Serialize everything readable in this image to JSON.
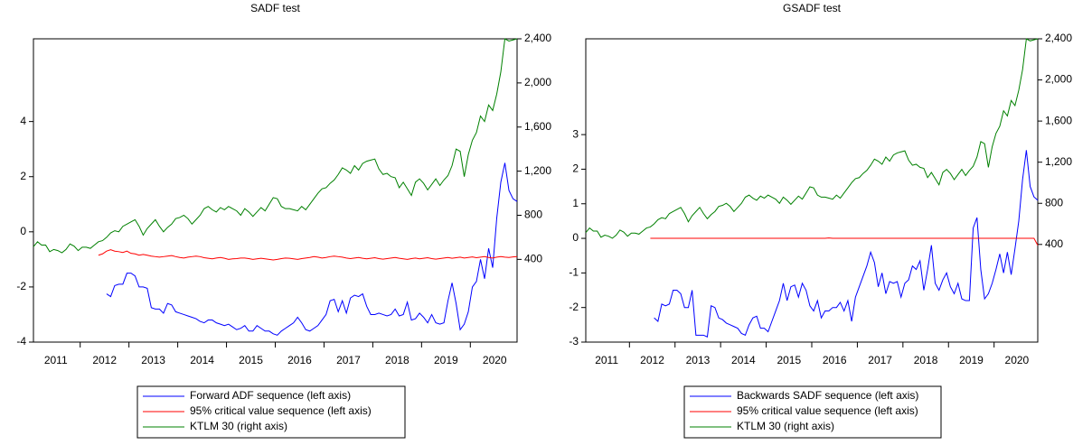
{
  "chart_data": [
    {
      "type": "line",
      "title": "SADF test",
      "categories": [
        null,
        null,
        null,
        null,
        null,
        null,
        "2011",
        null,
        null,
        null,
        null,
        null,
        null,
        null,
        null,
        null,
        null,
        null,
        "2012",
        null,
        null,
        null,
        null,
        null,
        null,
        null,
        null,
        null,
        null,
        null,
        "2013",
        null,
        null,
        null,
        null,
        null,
        null,
        null,
        null,
        null,
        null,
        null,
        "2014",
        null,
        null,
        null,
        null,
        null,
        null,
        null,
        null,
        null,
        null,
        null,
        "2015",
        null,
        null,
        null,
        null,
        null,
        null,
        null,
        null,
        null,
        null,
        null,
        "2016",
        null,
        null,
        null,
        null,
        null,
        null,
        null,
        null,
        null,
        null,
        null,
        "2017",
        null,
        null,
        null,
        null,
        null,
        null,
        null,
        null,
        null,
        null,
        null,
        "2018",
        null,
        null,
        null,
        null,
        null,
        null,
        null,
        null,
        null,
        null,
        null,
        "2019",
        null,
        null,
        null,
        null,
        null,
        null,
        null,
        null,
        null,
        null,
        null,
        "2020",
        null,
        null,
        null,
        null,
        null
      ],
      "ylim": [
        -4,
        7
      ],
      "yticks": [
        -4,
        -2,
        0,
        2,
        4
      ],
      "y2lim": [
        -350,
        2400
      ],
      "y2ticks": [
        400,
        800,
        {
          "value": 1200,
          "label": "1,200"
        },
        {
          "value": 1600,
          "label": "1,600"
        },
        {
          "value": 2000,
          "label": "2,000"
        },
        {
          "value": 2400,
          "label": "2,400"
        }
      ],
      "series": [
        {
          "name": "Forward ADF sequence (left axis)",
          "color": "#0000ff",
          "values": [
            null,
            null,
            null,
            null,
            null,
            null,
            null,
            null,
            null,
            null,
            null,
            null,
            null,
            null,
            null,
            null,
            null,
            null,
            -2.25,
            -2.35,
            -1.95,
            -1.9,
            -1.9,
            -1.5,
            -1.5,
            -1.6,
            -2.0,
            -2.0,
            -2.05,
            -2.75,
            -2.8,
            -2.8,
            -2.95,
            -2.6,
            -2.65,
            -2.9,
            -2.95,
            -3.0,
            -3.05,
            -3.1,
            -3.15,
            -3.25,
            -3.3,
            -3.2,
            -3.2,
            -3.3,
            -3.35,
            -3.4,
            -3.35,
            -3.45,
            -3.55,
            -3.5,
            -3.4,
            -3.6,
            -3.6,
            -3.4,
            -3.5,
            -3.6,
            -3.6,
            -3.7,
            -3.75,
            -3.6,
            -3.5,
            -3.4,
            -3.3,
            -3.1,
            -3.3,
            -3.55,
            -3.6,
            -3.5,
            -3.4,
            -3.2,
            -3.0,
            -2.5,
            -2.45,
            -2.9,
            -2.5,
            -2.95,
            -2.4,
            -2.3,
            -2.35,
            -2.25,
            -2.7,
            -3.0,
            -3.0,
            -2.95,
            -3.0,
            -3.05,
            -3.0,
            -2.8,
            -3.05,
            -3.0,
            -2.55,
            -3.2,
            -3.15,
            -2.95,
            -3.1,
            -3.3,
            -3.0,
            -3.3,
            -3.35,
            -3.3,
            -2.5,
            -1.85,
            -2.6,
            -3.55,
            -3.35,
            -2.9,
            -2.0,
            -1.8,
            -1.0,
            -1.7,
            -0.6,
            -1.3,
            0.5,
            1.8,
            2.5,
            1.5,
            1.2,
            1.1
          ]
        },
        {
          "name": "95% critical value sequence (left axis)",
          "color": "#ff0000",
          "values": [
            null,
            null,
            null,
            null,
            null,
            null,
            null,
            null,
            null,
            null,
            null,
            null,
            null,
            null,
            null,
            null,
            -0.85,
            -0.8,
            -0.7,
            -0.65,
            -0.7,
            -0.72,
            -0.75,
            -0.7,
            -0.78,
            -0.8,
            -0.85,
            -0.82,
            -0.85,
            -0.88,
            -0.9,
            -0.92,
            -0.9,
            -0.88,
            -0.86,
            -0.9,
            -0.93,
            -0.95,
            -0.92,
            -0.9,
            -0.88,
            -0.9,
            -0.94,
            -0.96,
            -0.98,
            -0.95,
            -0.93,
            -0.96,
            -1.0,
            -0.98,
            -0.97,
            -0.95,
            -0.95,
            -0.97,
            -1.0,
            -0.98,
            -0.96,
            -0.98,
            -1.0,
            -1.02,
            -1.0,
            -0.97,
            -0.95,
            -0.96,
            -0.98,
            -1.0,
            -0.97,
            -0.95,
            -0.93,
            -0.9,
            -0.92,
            -0.95,
            -0.93,
            -0.9,
            -0.88,
            -0.9,
            -0.92,
            -0.95,
            -0.97,
            -0.95,
            -0.93,
            -0.96,
            -0.98,
            -0.96,
            -0.94,
            -0.97,
            -0.99,
            -0.97,
            -0.95,
            -0.93,
            -0.96,
            -0.98,
            -1.0,
            -0.97,
            -0.95,
            -0.98,
            -0.96,
            -0.94,
            -0.97,
            -0.99,
            -0.97,
            -0.95,
            -0.93,
            -0.96,
            -0.94,
            -0.92,
            -0.95,
            -0.93,
            -0.91,
            -0.94,
            -0.92,
            -0.9,
            -0.93,
            -0.95,
            -0.92,
            -0.9,
            -0.92,
            -0.93,
            -0.91,
            -0.9
          ]
        },
        {
          "name": "KTLM 30 (right axis)",
          "color": "#008000",
          "axis": "y2",
          "values": [
            515,
            560,
            530,
            530,
            470,
            490,
            480,
            460,
            490,
            540,
            520,
            480,
            510,
            510,
            500,
            530,
            560,
            570,
            600,
            640,
            660,
            650,
            700,
            720,
            740,
            760,
            700,
            620,
            680,
            720,
            760,
            700,
            650,
            690,
            720,
            770,
            780,
            800,
            770,
            720,
            760,
            800,
            860,
            880,
            850,
            830,
            870,
            850,
            880,
            860,
            840,
            800,
            860,
            830,
            790,
            830,
            870,
            840,
            900,
            960,
            950,
            880,
            860,
            860,
            850,
            840,
            880,
            850,
            900,
            950,
            1000,
            1040,
            1050,
            1090,
            1120,
            1170,
            1230,
            1210,
            1180,
            1250,
            1210,
            1270,
            1290,
            1300,
            1310,
            1220,
            1170,
            1180,
            1150,
            1140,
            1050,
            1100,
            1040,
            980,
            1100,
            1130,
            1090,
            1030,
            1080,
            1130,
            1070,
            1120,
            1160,
            1250,
            1400,
            1380,
            1150,
            1350,
            1480,
            1550,
            1700,
            1650,
            1800,
            1750,
            1900,
            2100,
            2400,
            2380,
            2390,
            2400
          ]
        }
      ]
    },
    {
      "type": "line",
      "title": "GSADF test",
      "categories": [
        null,
        null,
        null,
        null,
        null,
        null,
        "2011",
        null,
        null,
        null,
        null,
        null,
        null,
        null,
        null,
        null,
        null,
        null,
        "2012",
        null,
        null,
        null,
        null,
        null,
        null,
        null,
        null,
        null,
        null,
        null,
        "2013",
        null,
        null,
        null,
        null,
        null,
        null,
        null,
        null,
        null,
        null,
        null,
        "2014",
        null,
        null,
        null,
        null,
        null,
        null,
        null,
        null,
        null,
        null,
        null,
        "2015",
        null,
        null,
        null,
        null,
        null,
        null,
        null,
        null,
        null,
        null,
        null,
        "2016",
        null,
        null,
        null,
        null,
        null,
        null,
        null,
        null,
        null,
        null,
        null,
        "2017",
        null,
        null,
        null,
        null,
        null,
        null,
        null,
        null,
        null,
        null,
        null,
        "2018",
        null,
        null,
        null,
        null,
        null,
        null,
        null,
        null,
        null,
        null,
        null,
        "2019",
        null,
        null,
        null,
        null,
        null,
        null,
        null,
        null,
        null,
        null,
        null,
        "2020",
        null,
        null,
        null,
        null,
        null
      ],
      "ylim": [
        -3,
        5.77
      ],
      "yticks": [
        -3,
        -2,
        -1,
        0,
        1,
        2,
        3
      ],
      "y2lim": [
        -550,
        2400
      ],
      "y2ticks": [
        400,
        800,
        {
          "value": 1200,
          "label": "1,200"
        },
        {
          "value": 1600,
          "label": "1,600"
        },
        {
          "value": 2000,
          "label": "2,000"
        },
        {
          "value": 2400,
          "label": "2,400"
        }
      ],
      "series": [
        {
          "name": "Backwards SADF sequence (left axis)",
          "color": "#0000ff",
          "values": [
            null,
            null,
            null,
            null,
            null,
            null,
            null,
            null,
            null,
            null,
            null,
            null,
            null,
            null,
            null,
            null,
            null,
            null,
            -2.3,
            -2.4,
            -1.9,
            -1.95,
            -1.9,
            -1.5,
            -1.5,
            -1.6,
            -2.0,
            -2.0,
            -1.5,
            -2.8,
            -2.8,
            -2.8,
            -2.85,
            -1.95,
            -2.0,
            -2.3,
            -2.35,
            -2.45,
            -2.5,
            -2.55,
            -2.6,
            -2.75,
            -2.8,
            -2.5,
            -2.3,
            -2.25,
            -2.6,
            -2.6,
            -2.7,
            -2.4,
            -2.1,
            -1.8,
            -1.3,
            -1.8,
            -1.4,
            -1.35,
            -1.7,
            -1.3,
            -1.5,
            -1.95,
            -2.1,
            -1.8,
            -2.3,
            -2.1,
            -2.1,
            -2.0,
            -2.0,
            -1.85,
            -2.1,
            -1.8,
            -2.4,
            -1.7,
            -1.4,
            -1.1,
            -0.8,
            -0.4,
            -0.7,
            -1.4,
            -1.0,
            -1.6,
            -1.25,
            -1.3,
            -1.25,
            -1.7,
            -1.3,
            -1.2,
            -0.8,
            -0.9,
            -0.65,
            -1.5,
            -0.9,
            -0.2,
            -1.3,
            -1.5,
            -1.2,
            -1.0,
            -1.4,
            -1.6,
            -1.3,
            -1.75,
            -1.8,
            -1.8,
            0.3,
            0.6,
            -0.9,
            -1.75,
            -1.6,
            -1.3,
            -0.9,
            -0.45,
            -1.0,
            -0.4,
            -1.05,
            -0.3,
            0.5,
            1.7,
            2.55,
            1.5,
            1.2,
            1.1
          ]
        },
        {
          "name": "95% critical value sequence (left axis)",
          "color": "#ff0000",
          "values": [
            null,
            null,
            null,
            null,
            null,
            null,
            null,
            null,
            null,
            null,
            null,
            null,
            null,
            null,
            null,
            null,
            null,
            0,
            0,
            0,
            0,
            0,
            0,
            0,
            0,
            0,
            0,
            0,
            0,
            0,
            0,
            0,
            0,
            0,
            0,
            0,
            0,
            0,
            0,
            0,
            0,
            0,
            0,
            0,
            0,
            0,
            0,
            0,
            0,
            0,
            0,
            0,
            0,
            0,
            0,
            0,
            0,
            0,
            0,
            0,
            0,
            0,
            0,
            0,
            0.01,
            0,
            0,
            0,
            0,
            0,
            0,
            0,
            0,
            0,
            0,
            0,
            0,
            0,
            0,
            0,
            0,
            0,
            0,
            0,
            0,
            0,
            0,
            0,
            0,
            0,
            0,
            0,
            0,
            0,
            0,
            0,
            0,
            0,
            0,
            0,
            0,
            0,
            0,
            0,
            0,
            0,
            0,
            0,
            0,
            0,
            0,
            0,
            0,
            0,
            0,
            0,
            0,
            0,
            0,
            -0.2
          ]
        },
        {
          "name": "KTLM 30 (right axis)",
          "color": "#008000",
          "axis": "y2",
          "values": [
            515,
            560,
            530,
            530,
            470,
            490,
            480,
            460,
            490,
            540,
            520,
            480,
            510,
            510,
            500,
            530,
            560,
            570,
            600,
            640,
            660,
            650,
            700,
            720,
            740,
            760,
            700,
            620,
            680,
            720,
            760,
            700,
            650,
            690,
            720,
            770,
            780,
            800,
            770,
            720,
            760,
            800,
            860,
            880,
            850,
            830,
            870,
            850,
            880,
            860,
            840,
            800,
            860,
            830,
            790,
            830,
            870,
            840,
            900,
            960,
            950,
            880,
            860,
            860,
            850,
            840,
            880,
            850,
            900,
            950,
            1000,
            1040,
            1050,
            1090,
            1120,
            1170,
            1230,
            1210,
            1180,
            1250,
            1210,
            1270,
            1290,
            1300,
            1310,
            1220,
            1170,
            1180,
            1150,
            1140,
            1050,
            1100,
            1040,
            980,
            1100,
            1130,
            1090,
            1030,
            1080,
            1130,
            1070,
            1120,
            1160,
            1250,
            1400,
            1380,
            1150,
            1350,
            1480,
            1550,
            1700,
            1650,
            1800,
            1750,
            1900,
            2100,
            2400,
            2380,
            2390,
            2400
          ]
        }
      ]
    }
  ]
}
